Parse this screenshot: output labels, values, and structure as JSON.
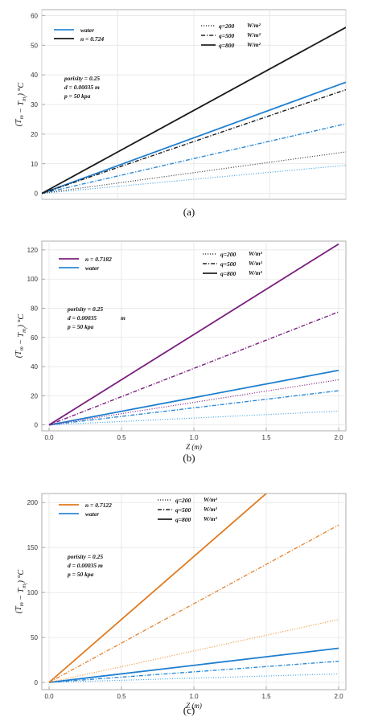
{
  "chart_data": [
    {
      "type": "line",
      "caption": "(a)",
      "ylabel": "(T_m − T_m_i) °C",
      "xlabel": "",
      "xlim": [
        0,
        2.0
      ],
      "ylim": [
        -2,
        62
      ],
      "yticks": [
        0,
        10,
        20,
        30,
        40,
        50,
        60
      ],
      "xticks": [],
      "grid": true,
      "fluid_legend": [
        {
          "label": "water",
          "color": "#2b8ad6"
        },
        {
          "label": "n = 0.724",
          "color": "#1a1a1a"
        }
      ],
      "q_legend": [
        {
          "label": "q=200",
          "unit": "W/m²",
          "style": "dotted"
        },
        {
          "label": "q=500",
          "unit": "W/m²",
          "style": "dashdot"
        },
        {
          "label": "q=800",
          "unit": "W/m²",
          "style": "solid"
        }
      ],
      "annotations": [
        "porisity = 0.25",
        "d = 0.00035  m",
        "p = 50 kpa"
      ],
      "series": [
        {
          "name": "water q=200",
          "color": "#5aaee8",
          "style": "dotted",
          "x": [
            0,
            2.0
          ],
          "y": [
            0,
            9.5
          ]
        },
        {
          "name": "water q=500",
          "color": "#2b8ad6",
          "style": "dashdot",
          "x": [
            0,
            2.0
          ],
          "y": [
            0,
            23.5
          ]
        },
        {
          "name": "water q=800",
          "color": "#1e7fd0",
          "style": "solid",
          "x": [
            0,
            2.0
          ],
          "y": [
            0,
            37.5
          ]
        },
        {
          "name": "n = 0.724 q=200",
          "color": "#555555",
          "style": "dotted",
          "x": [
            0,
            2.0
          ],
          "y": [
            0,
            14
          ]
        },
        {
          "name": "n = 0.724 q=500",
          "color": "#1a1a1a",
          "style": "dashdot",
          "x": [
            0,
            2.0
          ],
          "y": [
            0,
            35
          ]
        },
        {
          "name": "n = 0.724 q=800",
          "color": "#1a1a1a",
          "style": "solid",
          "x": [
            0,
            2.0
          ],
          "y": [
            0,
            56
          ]
        }
      ]
    },
    {
      "type": "line",
      "caption": "(b)",
      "ylabel": "(T_m − T_m_i) °C",
      "xlabel": "Z (m)",
      "xlim": [
        -0.05,
        2.05
      ],
      "ylim": [
        -4,
        126
      ],
      "yticks": [
        0,
        20,
        40,
        60,
        80,
        100,
        120
      ],
      "xticks": [
        0.0,
        0.5,
        1.0,
        1.5,
        2.0
      ],
      "xtick_labels": [
        "0.0",
        "0.5",
        "1.0",
        "1.5",
        "2.0"
      ],
      "grid": true,
      "fluid_legend": [
        {
          "label": "n = 0.7182",
          "color": "#7b1f7f"
        },
        {
          "label": "water",
          "color": "#2b8ad6"
        }
      ],
      "q_legend": [
        {
          "label": "q=200",
          "unit": "W/m²",
          "style": "dotted"
        },
        {
          "label": "q=500",
          "unit": "W/m²",
          "style": "dashdot"
        },
        {
          "label": "q=800",
          "unit": "W/m²",
          "style": "solid"
        }
      ],
      "annotations": [
        "porisity = 0.25",
        "d = 0.00035",
        "m",
        "p = 50 kpa"
      ],
      "series": [
        {
          "name": "water q=200",
          "color": "#5aaee8",
          "style": "dotted",
          "x": [
            0,
            2.0
          ],
          "y": [
            0,
            9.5
          ]
        },
        {
          "name": "water q=500",
          "color": "#2b8ad6",
          "style": "dashdot",
          "x": [
            0,
            2.0
          ],
          "y": [
            0,
            23.5
          ]
        },
        {
          "name": "water q=800",
          "color": "#1e7fd0",
          "style": "solid",
          "x": [
            0,
            2.0
          ],
          "y": [
            0,
            37.5
          ]
        },
        {
          "name": "n = 0.7182 q=200",
          "color": "#8a3a8e",
          "style": "dotted",
          "x": [
            0,
            2.0
          ],
          "y": [
            0,
            31
          ]
        },
        {
          "name": "n = 0.7182 q=500",
          "color": "#7b1f7f",
          "style": "dashdot",
          "x": [
            0,
            2.0
          ],
          "y": [
            0,
            77.5
          ]
        },
        {
          "name": "n = 0.7182 q=800",
          "color": "#7b1f7f",
          "style": "solid",
          "x": [
            0,
            2.0
          ],
          "y": [
            0,
            124
          ]
        }
      ]
    },
    {
      "type": "line",
      "caption": "(c)",
      "ylabel": "(T_m − T_m_i) °C",
      "xlabel": "Z (m)",
      "xlim": [
        -0.05,
        2.05
      ],
      "ylim": [
        -8,
        210
      ],
      "yticks": [
        0,
        50,
        100,
        150,
        200
      ],
      "xticks": [
        0.0,
        0.5,
        1.0,
        1.5,
        2.0
      ],
      "xtick_labels": [
        "0.0",
        "0.5",
        "1.0",
        "1.5",
        "2.0"
      ],
      "grid": true,
      "fluid_legend": [
        {
          "label": "n = 0.7122",
          "color": "#e07a1e"
        },
        {
          "label": "water",
          "color": "#2b8ad6"
        }
      ],
      "q_legend": [
        {
          "label": "q=200",
          "unit": "W/m²",
          "style": "dotted"
        },
        {
          "label": "q=500",
          "unit": "W/m²",
          "style": "dashdot"
        },
        {
          "label": "q=800",
          "unit": "W/m²",
          "style": "solid"
        }
      ],
      "annotations": [
        "porisity = 0.25",
        "d = 0.00035  m",
        "p = 50 kpa"
      ],
      "series": [
        {
          "name": "water q=200",
          "color": "#5aaee8",
          "style": "dotted",
          "x": [
            0,
            2.0
          ],
          "y": [
            0,
            9.5
          ]
        },
        {
          "name": "water q=500",
          "color": "#2b8ad6",
          "style": "dashdot",
          "x": [
            0,
            2.0
          ],
          "y": [
            0,
            23.5
          ]
        },
        {
          "name": "water q=800",
          "color": "#1e7fd0",
          "style": "solid",
          "x": [
            0,
            2.0
          ],
          "y": [
            0,
            38
          ]
        },
        {
          "name": "n = 0.7122 q=200",
          "color": "#f0a050",
          "style": "dotted",
          "x": [
            0,
            2.0
          ],
          "y": [
            0,
            70
          ]
        },
        {
          "name": "n = 0.7122 q=500",
          "color": "#e58a3a",
          "style": "dashdot",
          "x": [
            0,
            2.0
          ],
          "y": [
            0,
            175
          ]
        },
        {
          "name": "n = 0.7122 q=800",
          "color": "#e07a1e",
          "style": "solid",
          "x": [
            0,
            1.5
          ],
          "y": [
            0,
            210
          ]
        }
      ]
    }
  ]
}
